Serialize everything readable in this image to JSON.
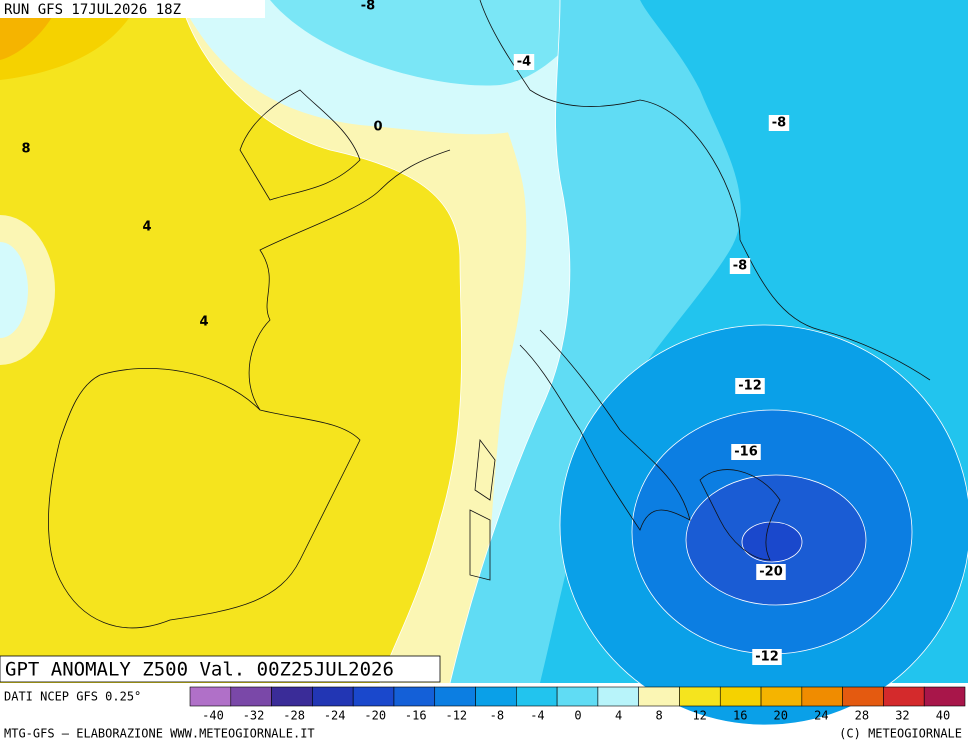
{
  "header": {
    "run": "RUN GFS 17JUL2026 18Z"
  },
  "map": {
    "title": "GPT ANOMALY Z500 Val. 00Z25JUL2026",
    "contour_labels": [
      "-8",
      "-4",
      "8",
      "0",
      "-8",
      "4",
      "-8",
      "4",
      "-12",
      "-16",
      "-20",
      "-12"
    ]
  },
  "legend": {
    "source": "DATI NCEP GFS 0.25°",
    "colors": [
      "#b070c8",
      "#7a48a8",
      "#3a2c98",
      "#2236b4",
      "#1a48cc",
      "#1460d8",
      "#0c7ee2",
      "#0aa0e8",
      "#22c4ee",
      "#60dcf4",
      "#b8f4fa",
      "#fbf6b4",
      "#f5e41e",
      "#f5d200",
      "#f5b400",
      "#f08c00",
      "#e45a10",
      "#d42a2c",
      "#a8164a"
    ],
    "labels": [
      -40,
      -32,
      -28,
      -24,
      -20,
      -16,
      -12,
      -8,
      -4,
      0,
      4,
      8,
      12,
      16,
      20,
      24,
      28,
      32,
      40
    ]
  },
  "footer": {
    "left": "MTG-GFS – ELABORAZIONE WWW.METEOGIORNALE.IT",
    "right": "(C) METEOGIORNALE"
  }
}
